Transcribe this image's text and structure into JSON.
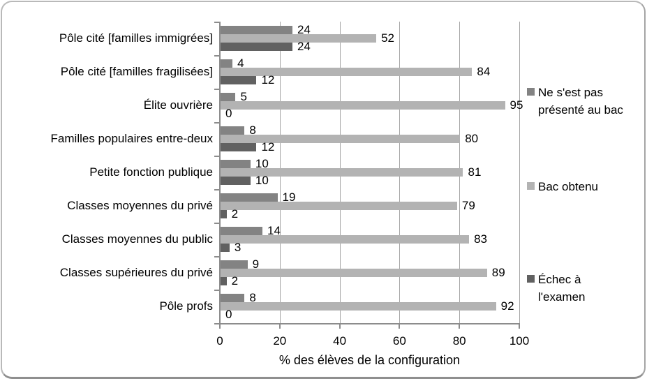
{
  "chart_data": {
    "type": "bar",
    "orientation": "horizontal",
    "xlabel": "% des élèves de la configuration",
    "xlim": [
      0,
      100
    ],
    "xticks": [
      0,
      20,
      40,
      60,
      80,
      100
    ],
    "grid": true,
    "data_labels": true,
    "legend_position": "right",
    "categories": [
      "Pôle cité [familles immigrées]",
      "Pôle cité [familles fragilisées]",
      "Élite ouvrière",
      "Familles populaires entre-deux",
      "Petite fonction publique",
      "Classes moyennes du privé",
      "Classes moyennes du public",
      "Classes supérieures du privé",
      "Pôle profs"
    ],
    "series": [
      {
        "name": "Ne s'est pas présenté au bac",
        "legend_lines": [
          "Ne s'est pas",
          "présenté au bac"
        ],
        "color": "#838383",
        "values": [
          24,
          4,
          5,
          8,
          10,
          19,
          14,
          9,
          8
        ]
      },
      {
        "name": "Bac obtenu",
        "legend_lines": [
          "Bac obtenu"
        ],
        "color": "#B3B3B3",
        "values": [
          52,
          84,
          95,
          80,
          81,
          79,
          83,
          89,
          92
        ]
      },
      {
        "name": "Échec à l'examen",
        "legend_lines": [
          "Échec à",
          "l'examen"
        ],
        "color": "#616161",
        "values": [
          24,
          12,
          0,
          12,
          10,
          2,
          3,
          2,
          0
        ]
      }
    ],
    "colors": {
      "gridline": "#A6A6A6",
      "axis": "#8C8C8C",
      "text": "#000000",
      "frame_border": "#B9B9B9",
      "background": "#FFFFFF"
    }
  }
}
